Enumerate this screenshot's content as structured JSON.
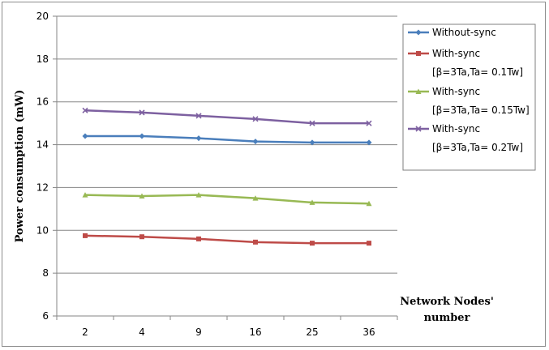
{
  "chart_data": {
    "type": "line",
    "title": "",
    "ylabel": "Power consumption (mW)",
    "xlabel_lines": [
      "Network Nodes'",
      "number"
    ],
    "categories": [
      "2",
      "4",
      "9",
      "16",
      "25",
      "36"
    ],
    "ylim": [
      6,
      20
    ],
    "yticks": [
      6,
      8,
      10,
      12,
      14,
      16,
      18,
      20
    ],
    "grid": true,
    "legend_position": "right",
    "series": [
      {
        "name": "Without-sync",
        "legend_lines": [
          "Without-sync"
        ],
        "color": "#4a7ebb",
        "marker": "diamond",
        "values": [
          14.4,
          14.4,
          14.3,
          14.15,
          14.1,
          14.1
        ]
      },
      {
        "name": "With-sync [β=3Ta,Ta= 0.1Tw]",
        "legend_lines": [
          "With-sync",
          "[β=3Ta,Ta= 0.1Tw]"
        ],
        "color": "#be4b48",
        "marker": "square",
        "values": [
          9.75,
          9.7,
          9.6,
          9.45,
          9.4,
          9.4
        ]
      },
      {
        "name": "With-sync [β=3Ta,Ta= 0.15Tw]",
        "legend_lines": [
          "With-sync",
          "[β=3Ta,Ta= 0.15Tw]"
        ],
        "color": "#98b954",
        "marker": "triangle",
        "values": [
          11.65,
          11.6,
          11.65,
          11.5,
          11.3,
          11.25
        ]
      },
      {
        "name": "With-sync [β=3Ta,Ta= 0.2Tw]",
        "legend_lines": [
          "With-sync",
          "[β=3Ta,Ta= 0.2Tw]"
        ],
        "color": "#7d60a0",
        "marker": "x",
        "values": [
          15.6,
          15.5,
          15.35,
          15.2,
          15.0,
          15.0
        ]
      }
    ]
  }
}
